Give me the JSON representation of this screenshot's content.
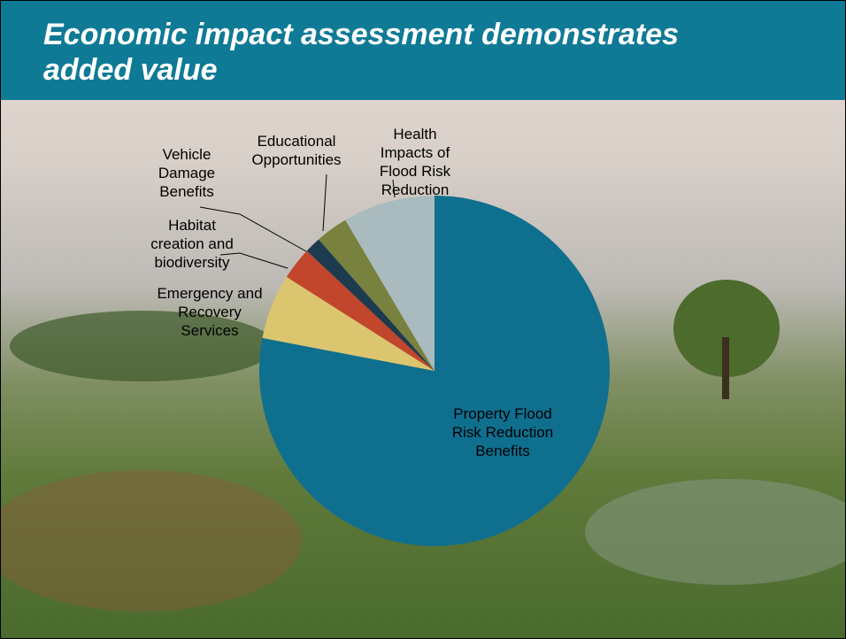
{
  "chart_data": {
    "type": "pie",
    "title": "Economic impact assessment demonstrates added value",
    "categories": [
      "Property Flood Risk Reduction Benefits",
      "Emergency and Recovery Services",
      "Habitat creation and biodiversity",
      "Vehicle Damage Benefits",
      "Educational Opportunities",
      "Health Impacts of Flood Risk Reduction"
    ],
    "values": [
      78,
      6,
      3,
      1.5,
      3,
      8.5
    ],
    "colors": [
      "#0f6f8f",
      "#dcc56f",
      "#c1462b",
      "#1e3a4e",
      "#78813d",
      "#a9bbbf"
    ]
  }
}
